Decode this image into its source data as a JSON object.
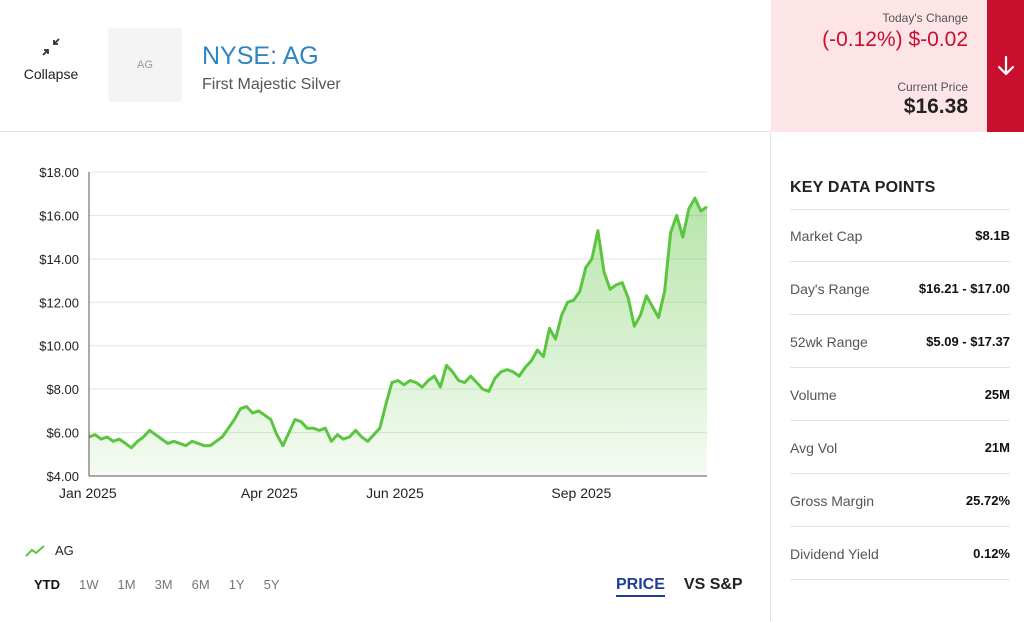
{
  "header": {
    "collapse_label": "Collapse",
    "logo_text": "AG",
    "ticker": "NYSE: AG",
    "company": "First Majestic Silver"
  },
  "change": {
    "label": "Today's Change",
    "value": "(-0.12%) $-0.02",
    "price_label": "Current Price",
    "price": "$16.38",
    "direction_icon": "arrow-down-icon",
    "color": "#c8102e",
    "bg": "#fde4e6"
  },
  "chart_data": {
    "type": "area",
    "series": [
      {
        "name": "AG",
        "color": "#5cc540",
        "x_start": "2025-01-02",
        "x_end": "2025-11-03",
        "values": [
          5.8,
          5.9,
          5.7,
          5.8,
          5.6,
          5.7,
          5.5,
          5.3,
          5.6,
          5.8,
          6.1,
          5.9,
          5.7,
          5.5,
          5.6,
          5.5,
          5.4,
          5.6,
          5.5,
          5.4,
          5.4,
          5.6,
          5.8,
          6.2,
          6.6,
          7.1,
          7.2,
          6.9,
          7.0,
          6.8,
          6.6,
          5.9,
          5.4,
          6.0,
          6.6,
          6.5,
          6.2,
          6.2,
          6.1,
          6.2,
          5.6,
          5.9,
          5.7,
          5.8,
          6.1,
          5.8,
          5.6,
          5.9,
          6.2,
          7.3,
          8.3,
          8.4,
          8.2,
          8.4,
          8.3,
          8.1,
          8.4,
          8.6,
          8.1,
          9.1,
          8.8,
          8.4,
          8.3,
          8.6,
          8.3,
          8.0,
          7.9,
          8.5,
          8.8,
          8.9,
          8.8,
          8.6,
          9.0,
          9.3,
          9.8,
          9.5,
          10.8,
          10.3,
          11.4,
          12.0,
          12.1,
          12.5,
          13.6,
          14.0,
          15.3,
          13.4,
          12.6,
          12.8,
          12.9,
          12.2,
          10.9,
          11.4,
          12.3,
          11.8,
          11.3,
          12.5,
          15.2,
          16.0,
          15.0,
          16.3,
          16.8,
          16.2,
          16.4
        ]
      }
    ],
    "ylim": [
      4,
      18
    ],
    "y_ticks": [
      "$4.00",
      "$6.00",
      "$8.00",
      "$10.00",
      "$12.00",
      "$14.00",
      "$16.00",
      "$18.00"
    ],
    "x_tick_labels": [
      {
        "label": "Jan 2025",
        "date": "2025-01-02"
      },
      {
        "label": "Apr 2025",
        "date": "2025-04-01"
      },
      {
        "label": "Jun 2025",
        "date": "2025-06-02"
      },
      {
        "label": "Sep 2025",
        "date": "2025-09-02"
      }
    ],
    "grid": true
  },
  "legend": {
    "label": "AG"
  },
  "ranges": [
    "YTD",
    "1W",
    "1M",
    "3M",
    "6M",
    "1Y",
    "5Y"
  ],
  "active_range": "YTD",
  "modes": {
    "price": "PRICE",
    "vs": "VS S&P"
  },
  "key_data": {
    "title": "KEY DATA POINTS",
    "rows": [
      {
        "key": "Market Cap",
        "value": "$8.1B"
      },
      {
        "key": "Day's Range",
        "value": "$16.21 - $17.00"
      },
      {
        "key": "52wk Range",
        "value": "$5.09 - $17.37"
      },
      {
        "key": "Volume",
        "value": "25M"
      },
      {
        "key": "Avg Vol",
        "value": "21M"
      },
      {
        "key": "Gross Margin",
        "value": "25.72%"
      },
      {
        "key": "Dividend Yield",
        "value": "0.12%"
      }
    ]
  }
}
